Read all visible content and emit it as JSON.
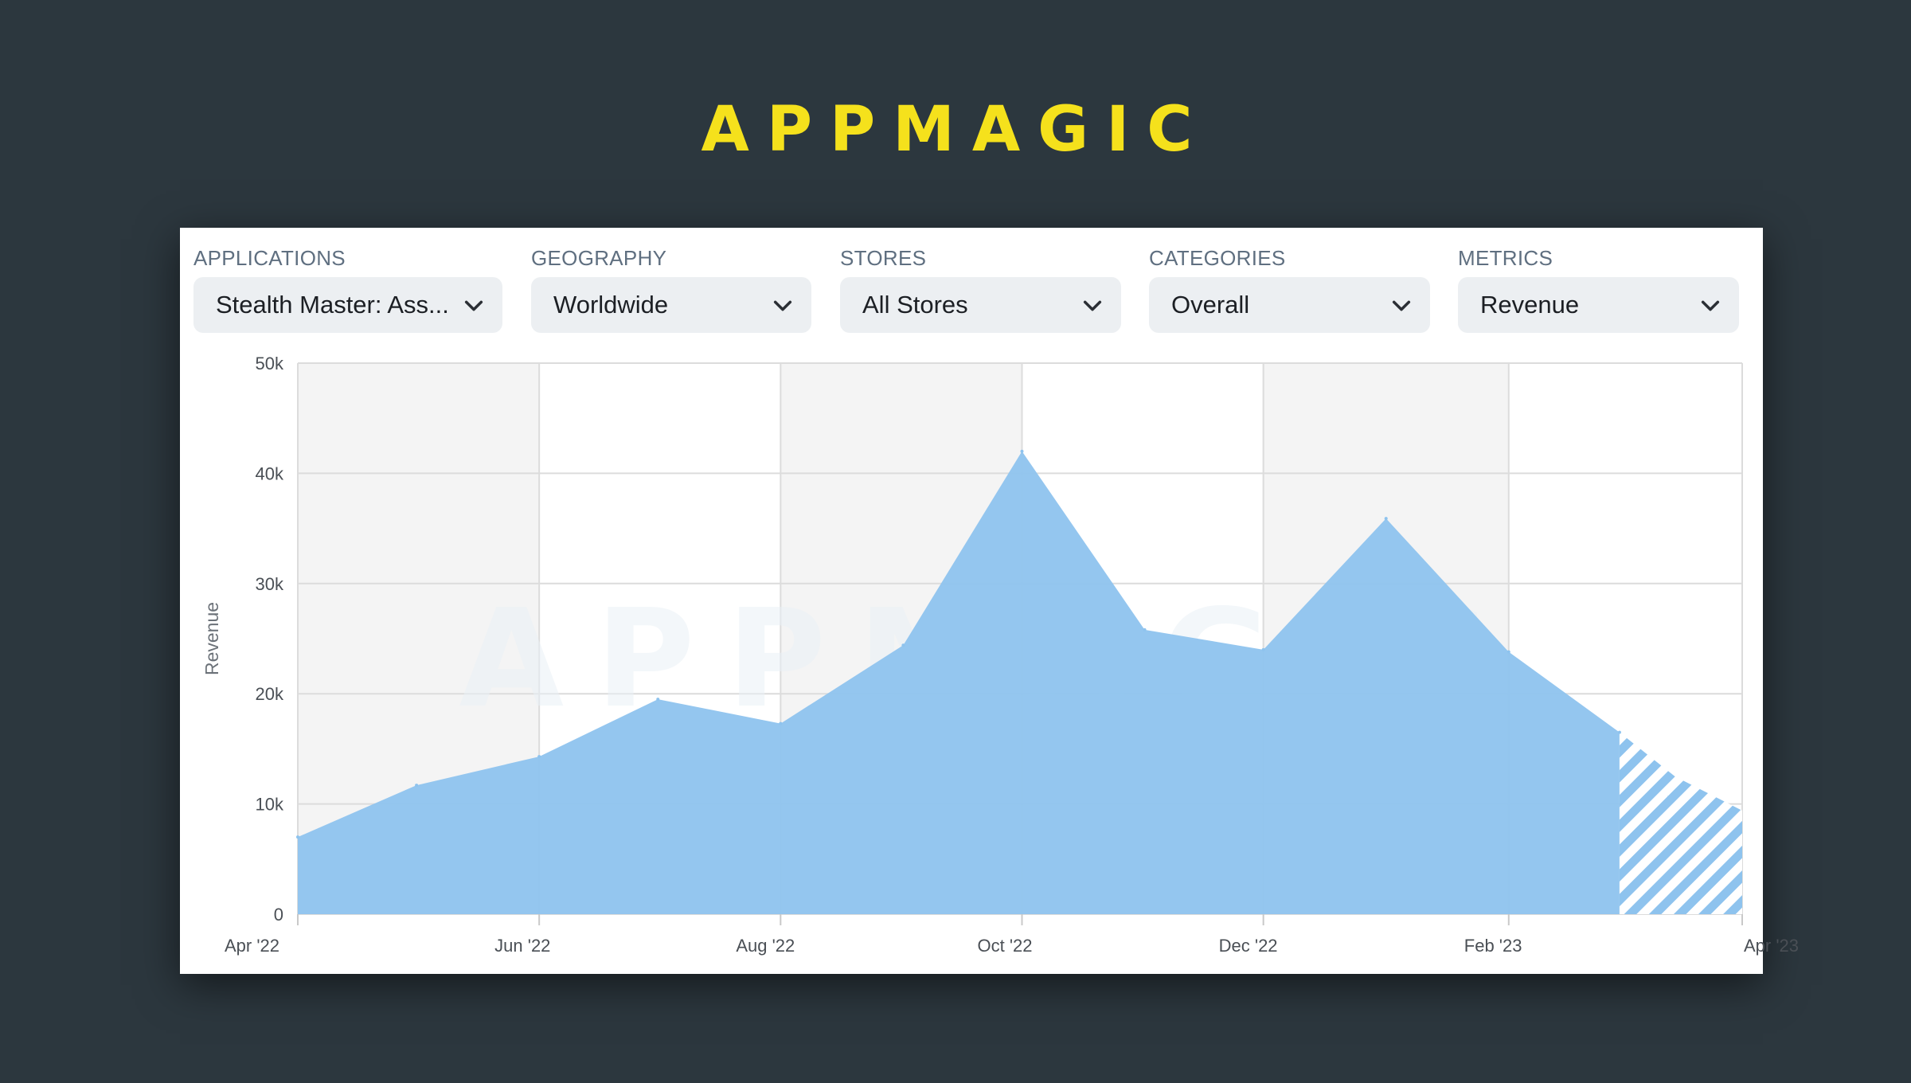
{
  "brand": {
    "logo_text": "APPMAGIC"
  },
  "filters": [
    {
      "label": "APPLICATIONS",
      "value": "Stealth Master: Ass..."
    },
    {
      "label": "GEOGRAPHY",
      "value": "Worldwide"
    },
    {
      "label": "STORES",
      "value": "All Stores"
    },
    {
      "label": "CATEGORIES",
      "value": "Overall"
    },
    {
      "label": "METRICS",
      "value": "Revenue"
    }
  ],
  "colors": {
    "background": "#2c373e",
    "logo": "#f5e11c",
    "area_fill": "#8ec3ee",
    "plot_shade": "#f4f4f4",
    "grid": "#dcdcdc"
  },
  "chart_data": {
    "type": "area",
    "title": "",
    "xlabel": "",
    "ylabel": "Revenue",
    "ylim": [
      0,
      50000
    ],
    "yticks": [
      0,
      10000,
      20000,
      30000,
      40000,
      50000
    ],
    "ytick_labels": [
      "0",
      "10k",
      "20k",
      "30k",
      "40k",
      "50k"
    ],
    "xlim": [
      "2022-04-01",
      "2023-04-01"
    ],
    "xticks": [
      "2022-04-01",
      "2022-06-01",
      "2022-08-01",
      "2022-10-01",
      "2022-12-01",
      "2023-02-01",
      "2023-04-01"
    ],
    "xtick_labels": [
      "Apr '22",
      "Jun '22",
      "Aug '22",
      "Oct '22",
      "Dec '22",
      "Feb '23",
      "Apr '23"
    ],
    "grid": true,
    "legend": "none",
    "watermark": "APPMAGIC",
    "points": [
      {
        "x": "2022-04-01",
        "y": 7000
      },
      {
        "x": "2022-05-01",
        "y": 11700
      },
      {
        "x": "2022-06-01",
        "y": 14300
      },
      {
        "x": "2022-07-01",
        "y": 19500
      },
      {
        "x": "2022-08-01",
        "y": 17300
      },
      {
        "x": "2022-09-01",
        "y": 24400
      },
      {
        "x": "2022-10-01",
        "y": 42000
      },
      {
        "x": "2022-11-01",
        "y": 25800
      },
      {
        "x": "2022-12-01",
        "y": 24000
      },
      {
        "x": "2023-01-01",
        "y": 35900
      },
      {
        "x": "2023-02-01",
        "y": 23800
      },
      {
        "x": "2023-03-01",
        "y": 16500
      }
    ],
    "partial_points": [
      {
        "x": "2023-03-01",
        "y": 16500
      },
      {
        "x": "2023-03-15",
        "y": 12500
      },
      {
        "x": "2023-04-01",
        "y": 9400
      }
    ]
  }
}
